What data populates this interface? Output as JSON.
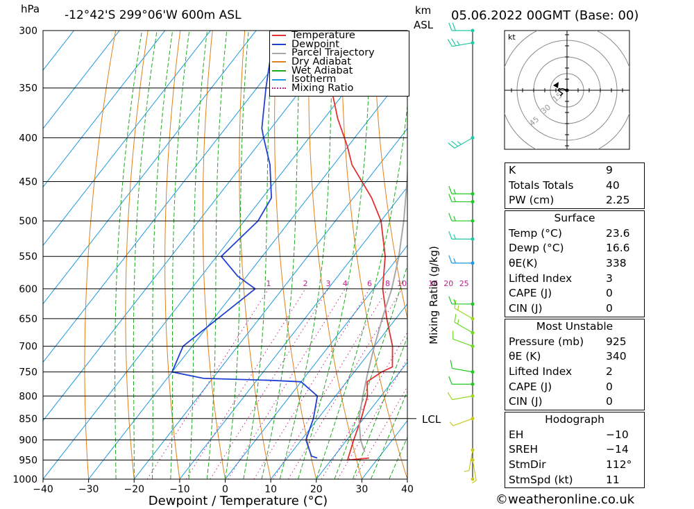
{
  "header": {
    "hpa_label": "hPa",
    "location": "-12°42'S  299°06'W  600m  ASL",
    "km_label": "km",
    "asl_label": "ASL",
    "datetime": "05.06.2022  00GMT  (Base: 00)"
  },
  "footer": "©weatheronline.co.uk",
  "chart_data": {
    "type": "line",
    "title": "",
    "xlabel": "Dewpoint / Temperature (°C)",
    "ylabel": "hPa",
    "right_axis_label": "Mixing Ratio (g/kg)",
    "xlim": [
      -40,
      40
    ],
    "ylim": [
      1000,
      300
    ],
    "x_ticks": [
      -40,
      -30,
      -20,
      -10,
      0,
      10,
      20,
      30,
      40
    ],
    "pressure_ticks": [
      300,
      350,
      400,
      450,
      500,
      550,
      600,
      650,
      700,
      750,
      800,
      850,
      900,
      950,
      1000
    ],
    "mixing_ratio_labels": [
      "1",
      "2",
      "3",
      "4",
      "6",
      "8",
      "10",
      "16",
      "20",
      "25"
    ],
    "mixing_ratio_values": [
      1,
      2,
      3,
      4,
      6,
      8,
      10,
      16,
      20,
      25
    ],
    "lcl_label": "LCL",
    "lcl_pressure": 850,
    "legend": [
      "Temperature",
      "Dewpoint",
      "Parcel Trajectory",
      "Dry Adiabat",
      "Wet Adiabat",
      "Isotherm",
      "Mixing Ratio"
    ],
    "colors": {
      "temperature": "#e03030",
      "dewpoint": "#2040d0",
      "parcel": "#a8a8a8",
      "dry_adiabat": "#e0801a",
      "wet_adiabat": "#1ea81e",
      "isotherm": "#1a9ae0",
      "mixing_ratio": "#c0208a"
    },
    "series": [
      {
        "name": "Temperature",
        "points": [
          [
            28,
            945
          ],
          [
            23.6,
            950
          ],
          [
            21.5,
            900
          ],
          [
            19.5,
            850
          ],
          [
            17,
            800
          ],
          [
            14.5,
            770
          ],
          [
            16,
            750
          ],
          [
            17.5,
            740
          ],
          [
            14,
            700
          ],
          [
            8,
            650
          ],
          [
            2,
            600
          ],
          [
            -3,
            550
          ],
          [
            -10,
            500
          ],
          [
            -16,
            470
          ],
          [
            -26,
            430
          ],
          [
            -30,
            410
          ],
          [
            -37,
            380
          ],
          [
            -46,
            340
          ],
          [
            -57,
            300
          ]
        ]
      },
      {
        "name": "Dewpoint",
        "points": [
          [
            16.6,
            945
          ],
          [
            15,
            940
          ],
          [
            11,
            900
          ],
          [
            9,
            850
          ],
          [
            6,
            800
          ],
          [
            0,
            770
          ],
          [
            -7,
            767
          ],
          [
            -22,
            763
          ],
          [
            -30,
            750
          ],
          [
            -32,
            700
          ],
          [
            -26,
            600
          ],
          [
            -32,
            580
          ],
          [
            -39,
            550
          ],
          [
            -37,
            500
          ],
          [
            -38,
            470
          ],
          [
            -44,
            430
          ],
          [
            -50,
            400
          ],
          [
            -52,
            390
          ],
          [
            -58,
            350
          ],
          [
            -66,
            300
          ]
        ]
      },
      {
        "name": "Parcel Trajectory",
        "points": [
          [
            26,
            930
          ],
          [
            23,
            900
          ],
          [
            19,
            850
          ],
          [
            16,
            800
          ],
          [
            13,
            750
          ],
          [
            10,
            700
          ],
          [
            7,
            650
          ],
          [
            4,
            600
          ],
          [
            0,
            550
          ],
          [
            -5,
            500
          ],
          [
            -11,
            450
          ],
          [
            -18,
            400
          ],
          [
            -27,
            350
          ],
          [
            -38,
            300
          ]
        ]
      }
    ],
    "hodograph": {
      "unit": "kt",
      "rings": [
        "15",
        "30",
        "45"
      ],
      "points": [
        [
          0,
          0
        ],
        [
          -4,
          1.5
        ],
        [
          -6,
          1
        ],
        [
          -7,
          1.5
        ],
        [
          -8,
          0
        ],
        [
          -4,
          -3
        ],
        [
          -6,
          -5
        ]
      ]
    },
    "winds": [
      {
        "p": 1000,
        "dir": 0,
        "spd": 0,
        "color": "#c8c81e"
      },
      {
        "p": 950,
        "dir": 170,
        "spd": 5,
        "color": "#c8c81e"
      },
      {
        "p": 925,
        "dir": 190,
        "spd": 5,
        "color": "#c8c81e"
      },
      {
        "p": 850,
        "dir": 250,
        "spd": 5,
        "color": "#c8c81e"
      },
      {
        "p": 800,
        "dir": 260,
        "spd": 10,
        "color": "#9ad81e"
      },
      {
        "p": 775,
        "dir": 270,
        "spd": 10,
        "color": "#1ec81e"
      },
      {
        "p": 750,
        "dir": 280,
        "spd": 10,
        "color": "#1ec81e"
      },
      {
        "p": 700,
        "dir": 290,
        "spd": 10,
        "color": "#6ad81e"
      },
      {
        "p": 675,
        "dir": 300,
        "spd": 15,
        "color": "#6ad81e"
      },
      {
        "p": 650,
        "dir": 300,
        "spd": 15,
        "color": "#9ad81e"
      },
      {
        "p": 625,
        "dir": 270,
        "spd": 15,
        "color": "#1ec81e"
      },
      {
        "p": 560,
        "dir": 270,
        "spd": 15,
        "color": "#1a9ae0"
      },
      {
        "p": 525,
        "dir": 270,
        "spd": 15,
        "color": "#1ec8a0"
      },
      {
        "p": 500,
        "dir": 270,
        "spd": 15,
        "color": "#1ec81e"
      },
      {
        "p": 475,
        "dir": 270,
        "spd": 15,
        "color": "#1ec81e"
      },
      {
        "p": 465,
        "dir": 270,
        "spd": 15,
        "color": "#1ec81e"
      },
      {
        "p": 400,
        "dir": 240,
        "spd": 25,
        "color": "#1ec8a0"
      },
      {
        "p": 310,
        "dir": 260,
        "spd": 25,
        "color": "#1ec8a0"
      },
      {
        "p": 300,
        "dir": 270,
        "spd": 20,
        "color": "#1ec8a0"
      }
    ]
  },
  "indices": [
    {
      "label": "K",
      "value": "9"
    },
    {
      "label": "Totals Totals",
      "value": "40"
    },
    {
      "label": "PW (cm)",
      "value": "2.25"
    }
  ],
  "surface": {
    "title": "Surface",
    "rows": [
      {
        "label": "Temp (°C)",
        "value": "23.6"
      },
      {
        "label": "Dewp (°C)",
        "value": "16.6"
      },
      {
        "label": "θE(K)",
        "value": "338"
      },
      {
        "label": "Lifted Index",
        "value": "3"
      },
      {
        "label": "CAPE (J)",
        "value": "0"
      },
      {
        "label": "CIN (J)",
        "value": "0"
      }
    ]
  },
  "most_unstable": {
    "title": "Most Unstable",
    "rows": [
      {
        "label": "Pressure (mb)",
        "value": "925"
      },
      {
        "label": "θE (K)",
        "value": "340"
      },
      {
        "label": "Lifted Index",
        "value": "2"
      },
      {
        "label": "CAPE (J)",
        "value": "0"
      },
      {
        "label": "CIN (J)",
        "value": "0"
      }
    ]
  },
  "hodograph_table": {
    "title": "Hodograph",
    "rows": [
      {
        "label": "EH",
        "value": "-10"
      },
      {
        "label": "SREH",
        "value": "-14"
      },
      {
        "label": "StmDir",
        "value": "112°"
      },
      {
        "label": "StmSpd (kt)",
        "value": "11"
      }
    ]
  }
}
